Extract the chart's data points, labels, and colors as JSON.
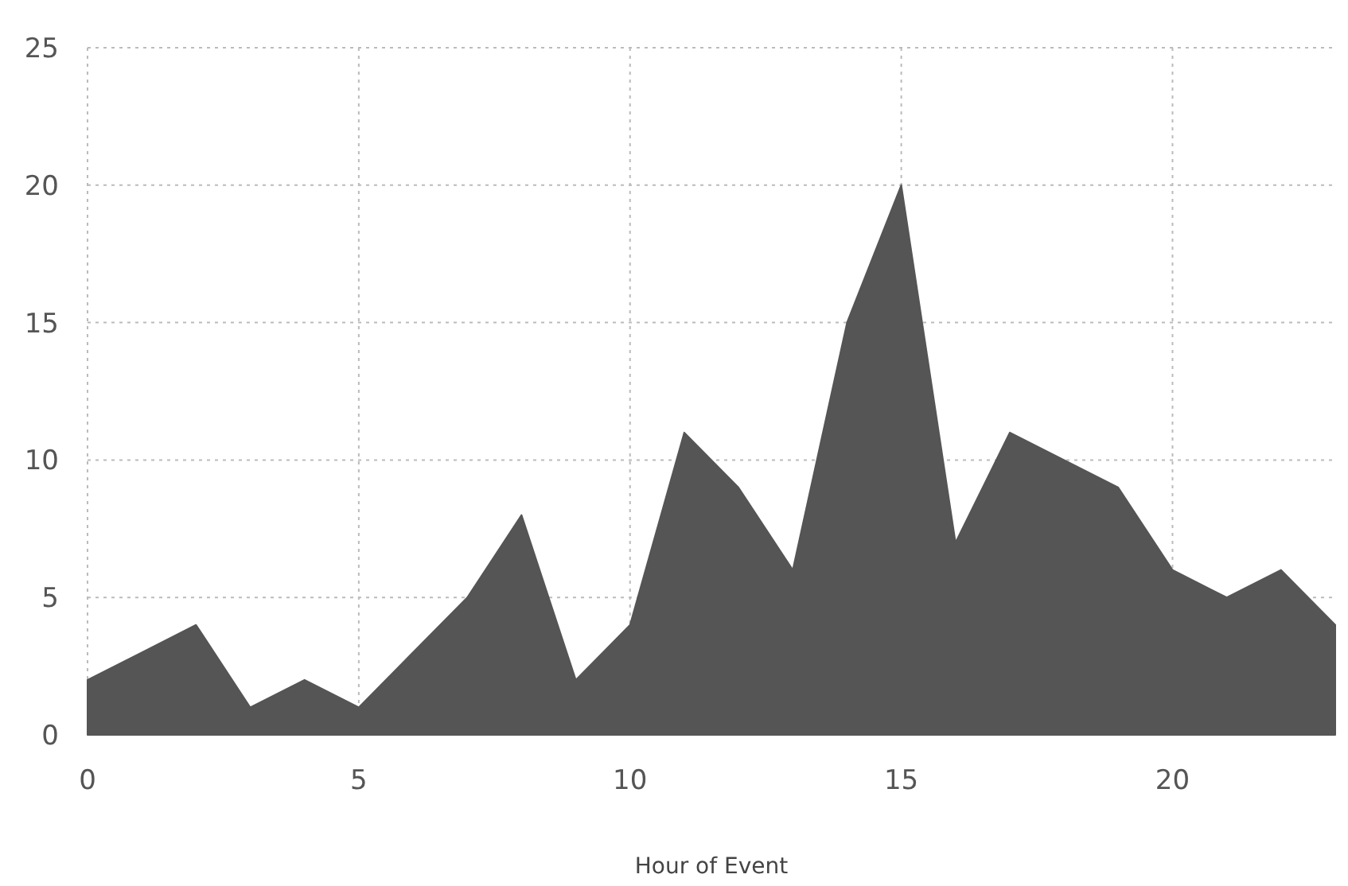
{
  "chart_data": {
    "type": "area",
    "xlabel": "Hour of Event",
    "x": [
      0,
      1,
      2,
      3,
      4,
      5,
      6,
      7,
      8,
      9,
      10,
      11,
      12,
      13,
      14,
      15,
      16,
      17,
      18,
      19,
      20,
      21,
      22,
      23
    ],
    "values": [
      2,
      3,
      4,
      1,
      2,
      1,
      3,
      5,
      8,
      2,
      4,
      11,
      9,
      6,
      15,
      20,
      7,
      11,
      10,
      9,
      6,
      5,
      6,
      4
    ],
    "color": "#555555",
    "xlim": [
      0,
      23
    ],
    "xticks": [
      0,
      5,
      10,
      15,
      20
    ],
    "ylim": [
      0,
      25
    ],
    "yticks": [
      0,
      5,
      10,
      15,
      20,
      25
    ],
    "grid": true
  }
}
